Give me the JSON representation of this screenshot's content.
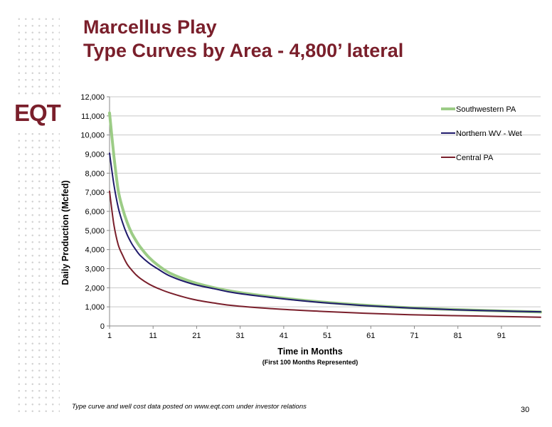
{
  "slide": {
    "title_line1": "Marcellus Play",
    "title_line2": "Type Curves by Area - 4,800’ lateral",
    "logo_text": "EQT",
    "footnote": "Type curve and well cost data posted on www.eqt.com under investor relations",
    "page_number": "30"
  },
  "colors": {
    "title": "#7a1f2b",
    "southwestern_pa": "#9ccc86",
    "northern_wv": "#1f1a6b",
    "central_pa": "#7a1f2b"
  },
  "chart_data": {
    "type": "line",
    "ylabel": "Daily Production (Mcfed)",
    "xlabel": "Time in Months",
    "xlabel_sub": "(First 100 Months Represented)",
    "ylim": [
      0,
      12000
    ],
    "xlim": [
      1,
      100
    ],
    "y_ticks": [
      0,
      1000,
      2000,
      3000,
      4000,
      5000,
      6000,
      7000,
      8000,
      9000,
      10000,
      11000,
      12000
    ],
    "y_tick_labels": [
      "0",
      "1,000",
      "2,000",
      "3,000",
      "4,000",
      "5,000",
      "6,000",
      "7,000",
      "8,000",
      "9,000",
      "10,000",
      "11,000",
      "12,000"
    ],
    "x_ticks": [
      1,
      11,
      21,
      31,
      41,
      51,
      61,
      71,
      81,
      91
    ],
    "x_tick_labels": [
      "1",
      "11",
      "21",
      "31",
      "41",
      "51",
      "61",
      "71",
      "81",
      "91"
    ],
    "grid": "horizontal",
    "legend": "top-right",
    "series": [
      {
        "name": "Southwestern PA",
        "color": "#9ccc86",
        "x": [
          1,
          2,
          3,
          4,
          5,
          6,
          7,
          8,
          10,
          12,
          15,
          20,
          25,
          30,
          40,
          50,
          60,
          70,
          80,
          90,
          100
        ],
        "y": [
          11150,
          8900,
          7100,
          6150,
          5450,
          4900,
          4500,
          4150,
          3600,
          3200,
          2750,
          2300,
          2000,
          1780,
          1480,
          1250,
          1080,
          950,
          860,
          790,
          730
        ]
      },
      {
        "name": "Northern WV - Wet",
        "color": "#1f1a6b",
        "x": [
          1,
          2,
          3,
          4,
          5,
          6,
          7,
          8,
          10,
          12,
          15,
          20,
          25,
          30,
          40,
          50,
          60,
          70,
          80,
          90,
          100
        ],
        "y": [
          9050,
          7400,
          6200,
          5400,
          4800,
          4350,
          4000,
          3700,
          3300,
          3000,
          2600,
          2200,
          1950,
          1720,
          1440,
          1220,
          1060,
          940,
          850,
          790,
          740
        ]
      },
      {
        "name": "Central PA",
        "color": "#7a1f2b",
        "x": [
          1,
          2,
          3,
          4,
          5,
          6,
          7,
          8,
          10,
          12,
          15,
          20,
          25,
          30,
          40,
          50,
          60,
          70,
          80,
          90,
          100
        ],
        "y": [
          7050,
          5300,
          4250,
          3700,
          3250,
          2950,
          2700,
          2500,
          2200,
          1980,
          1720,
          1400,
          1200,
          1050,
          880,
          760,
          660,
          590,
          540,
          500,
          460
        ]
      }
    ]
  }
}
